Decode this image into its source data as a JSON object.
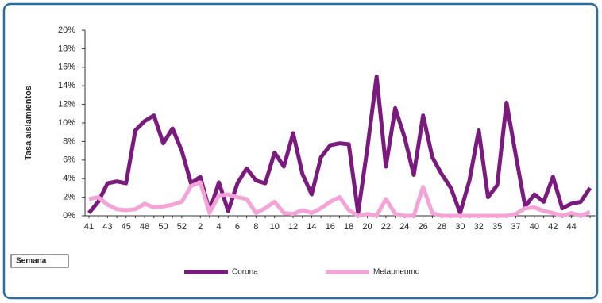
{
  "chart_data": {
    "type": "line",
    "y_label": "Tasa aislamientos",
    "x_label": "Semana",
    "categories": [
      "41",
      null,
      "43",
      null,
      "45",
      null,
      "48",
      null,
      "50",
      null,
      "52",
      null,
      "2",
      null,
      "4",
      null,
      "6",
      null,
      "8",
      null,
      "10",
      null,
      "12",
      null,
      "14",
      null,
      "16",
      null,
      "18",
      null,
      "20",
      null,
      "22",
      null,
      "24",
      null,
      "26",
      null,
      "28",
      null,
      "30",
      null,
      "32",
      null,
      "35",
      null,
      "37",
      null,
      "40",
      null,
      "42",
      null,
      "44",
      null,
      null
    ],
    "series": [
      {
        "name": "Corona",
        "color": "#7b1a7e",
        "values": [
          0.3,
          1.5,
          3.5,
          3.7,
          3.5,
          9.2,
          10.2,
          10.8,
          7.8,
          9.4,
          7,
          3.5,
          4.2,
          0.5,
          3.6,
          0.5,
          3.5,
          5.1,
          3.8,
          3.5,
          6.8,
          5.3,
          8.9,
          4.5,
          2.3,
          6.3,
          7.6,
          7.8,
          7.7,
          0.3,
          7.3,
          15,
          5.3,
          11.6,
          8.5,
          4.4,
          10.8,
          6.3,
          4.5,
          3,
          0.3,
          3.8,
          9.2,
          2,
          3.3,
          12.2,
          6.5,
          1,
          2.3,
          1.5,
          4.2,
          0.8,
          1.3,
          1.5,
          3
        ]
      },
      {
        "name": "Metapneumo",
        "color": "#f5a3d6",
        "values": [
          1.8,
          2,
          1.2,
          0.7,
          0.6,
          0.7,
          1.3,
          0.9,
          1,
          1.2,
          1.5,
          3.2,
          3.6,
          0.3,
          2.2,
          2.3,
          2,
          1.8,
          0.3,
          0.8,
          1.5,
          0.3,
          0.2,
          0.6,
          0.3,
          0.8,
          1.5,
          2,
          0.6,
          0,
          0.2,
          0,
          1.8,
          0.2,
          0,
          0,
          3.1,
          0.3,
          0,
          0,
          0,
          0,
          0,
          0,
          0,
          0,
          0.2,
          0.8,
          0.9,
          0.5,
          0.3,
          0,
          0.3,
          0,
          0.4
        ]
      }
    ],
    "ylim": [
      0,
      20
    ],
    "yticks": [
      {
        "value": 0,
        "label": "0%"
      },
      {
        "value": 2,
        "label": "2%"
      },
      {
        "value": 4,
        "label": "4%"
      },
      {
        "value": 6,
        "label": "6%"
      },
      {
        "value": 8,
        "label": "8%"
      },
      {
        "value": 10,
        "label": "10%"
      },
      {
        "value": 12,
        "label": "12%"
      },
      {
        "value": 14,
        "label": "14%"
      },
      {
        "value": 16,
        "label": "16%"
      },
      {
        "value": 18,
        "label": "18%"
      },
      {
        "value": 20,
        "label": "20%"
      }
    ],
    "legend": "bottom"
  }
}
